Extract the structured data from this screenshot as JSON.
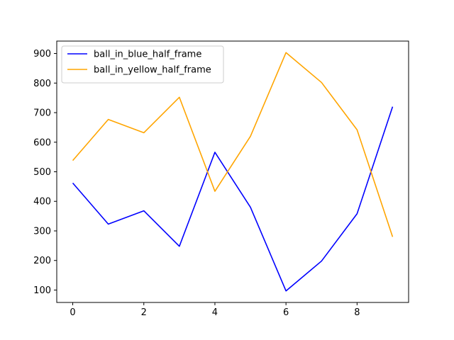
{
  "chart_data": {
    "type": "line",
    "title": "",
    "xlabel": "",
    "ylabel": "",
    "x": [
      0,
      1,
      2,
      3,
      4,
      5,
      6,
      7,
      8,
      9
    ],
    "xlim": [
      -0.45,
      9.45
    ],
    "ylim": [
      58,
      942
    ],
    "xticks": [
      0,
      2,
      4,
      6,
      8
    ],
    "yticks": [
      100,
      200,
      300,
      400,
      500,
      600,
      700,
      800,
      900
    ],
    "grid": false,
    "legend_position": "top-left",
    "series": [
      {
        "name": "ball_in_blue_half_frame",
        "color": "#0000ff",
        "values": [
          462,
          323,
          368,
          248,
          566,
          380,
          97,
          198,
          358,
          720
        ]
      },
      {
        "name": "ball_in_yellow_half_frame",
        "color": "#ffa500",
        "values": [
          538,
          677,
          632,
          752,
          434,
          620,
          903,
          802,
          642,
          280
        ]
      }
    ]
  }
}
